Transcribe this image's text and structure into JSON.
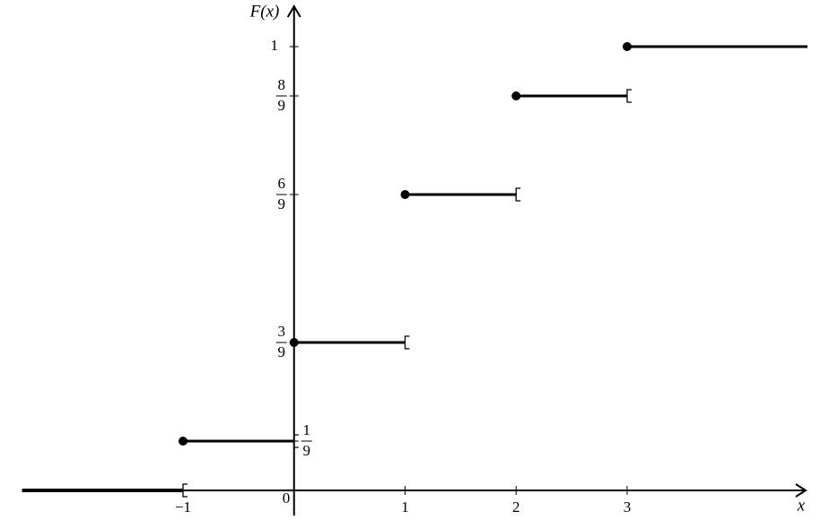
{
  "chart_data": {
    "type": "step",
    "y_label": "F(x)",
    "x_label": "x",
    "origin_label": "0",
    "xlim": [
      -2.45,
      4.63
    ],
    "ylim": [
      0,
      1.02
    ],
    "xticks": [
      {
        "value": -1,
        "label": "−1"
      },
      1,
      2,
      3
    ],
    "yticks": [
      {
        "value": 0.1111,
        "label": [
          "1",
          "9"
        ]
      },
      {
        "value": 0.3333,
        "label": [
          "3",
          "9"
        ]
      },
      {
        "value": 0.6667,
        "label": [
          "6",
          "9"
        ]
      },
      {
        "value": 0.8889,
        "label": [
          "8",
          "9"
        ]
      },
      1
    ],
    "series": [
      {
        "color": "#000000",
        "x": [
          -2.45,
          -1,
          0,
          1,
          2,
          3
        ],
        "values": [
          0,
          0.1111,
          0.3333,
          0.6667,
          0.8889,
          1
        ]
      }
    ]
  }
}
